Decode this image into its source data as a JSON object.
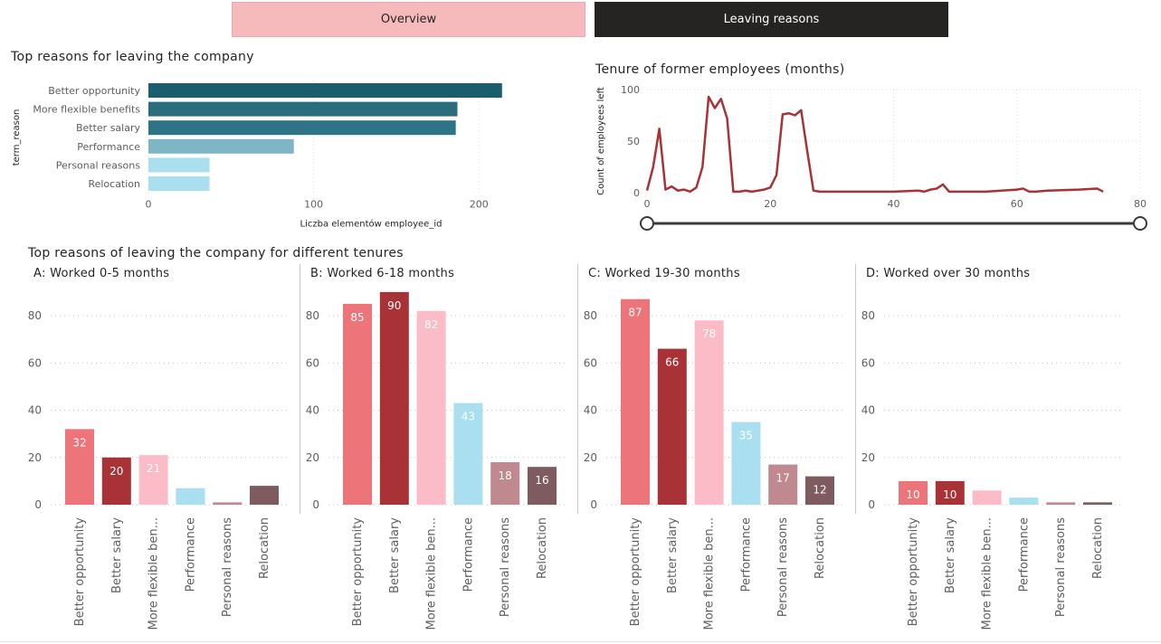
{
  "tabs": [
    {
      "label": "Overview",
      "active": false
    },
    {
      "label": "Leaving reasons",
      "active": true
    }
  ],
  "top_reasons": {
    "title": "Top reasons for leaving the company",
    "chart_data": {
      "type": "bar",
      "orientation": "horizontal",
      "categories": [
        "Better opportunity",
        "More flexible benefits",
        "Better salary",
        "Performance",
        "Personal reasons",
        "Relocation"
      ],
      "values": [
        214,
        187,
        186,
        88,
        37,
        37
      ],
      "colors": [
        "#1a5e6e",
        "#2a6e7d",
        "#2d7487",
        "#7fb6c6",
        "#a9dfee",
        "#a9dfee"
      ],
      "xlabel": "Liczba elementów employee_id",
      "ylabel": "term_reason",
      "xlim": [
        0,
        230
      ],
      "xticks": [
        0,
        100,
        200
      ],
      "grid": true
    }
  },
  "tenure_chart": {
    "title": "Tenure of former employees (months)",
    "chart_data": {
      "type": "line",
      "ylabel": "Count of employees left",
      "xlabel": "",
      "xlim": [
        0,
        80
      ],
      "ylim": [
        0,
        100
      ],
      "xticks": [
        0,
        20,
        40,
        60,
        80
      ],
      "yticks": [
        0,
        50,
        100
      ],
      "color": "#a83236",
      "x": [
        0,
        1,
        2,
        3,
        4,
        5,
        6,
        7,
        8,
        9,
        10,
        11,
        12,
        13,
        14,
        15,
        16,
        17,
        18,
        19,
        20,
        21,
        22,
        23,
        24,
        25,
        26,
        27,
        28,
        30,
        35,
        40,
        44,
        45,
        46,
        47,
        48,
        49,
        50,
        55,
        60,
        61,
        62,
        63,
        65,
        70,
        73,
        74
      ],
      "y": [
        2,
        25,
        62,
        3,
        6,
        2,
        3,
        1,
        5,
        25,
        93,
        82,
        91,
        72,
        1,
        1,
        2,
        1,
        2,
        3,
        5,
        17,
        76,
        77,
        75,
        80,
        40,
        2,
        1,
        1,
        1,
        1,
        2,
        1,
        3,
        4,
        8,
        1,
        1,
        1,
        3,
        4,
        1,
        1,
        2,
        3,
        4,
        1
      ],
      "grid": true
    },
    "slider": {
      "min": 0,
      "max": 80,
      "value_from": 0,
      "value_to": 80
    }
  },
  "tenure_reasons": {
    "title": "Top reasons of leaving the company for different tenures",
    "panels": [
      {
        "subtitle": "A: Worked 0-5 months",
        "chart_data": {
          "type": "bar",
          "categories": [
            "Better opportunity",
            "Better salary",
            "More flexible ben...",
            "Performance",
            "Personal reasons",
            "Relocation"
          ],
          "values": [
            32,
            20,
            21,
            7,
            1,
            8
          ],
          "data_labels": [
            "32",
            "20",
            "21",
            "",
            "",
            ""
          ],
          "ylim": [
            0,
            90
          ],
          "yticks": [
            0,
            20,
            40,
            60,
            80
          ]
        }
      },
      {
        "subtitle": "B: Worked 6-18 months",
        "chart_data": {
          "type": "bar",
          "categories": [
            "Better opportunity",
            "Better salary",
            "More flexible ben...",
            "Performance",
            "Personal reasons",
            "Relocation"
          ],
          "values": [
            85,
            90,
            82,
            43,
            18,
            16
          ],
          "data_labels": [
            "85",
            "90",
            "82",
            "43",
            "18",
            "16"
          ],
          "ylim": [
            0,
            90
          ],
          "yticks": [
            0,
            20,
            40,
            60,
            80
          ]
        }
      },
      {
        "subtitle": "C: Worked 19-30 months",
        "chart_data": {
          "type": "bar",
          "categories": [
            "Better opportunity",
            "Better salary",
            "More flexible ben...",
            "Performance",
            "Personal reasons",
            "Relocation"
          ],
          "values": [
            87,
            66,
            78,
            35,
            17,
            12
          ],
          "data_labels": [
            "87",
            "66",
            "78",
            "35",
            "17",
            "12"
          ],
          "ylim": [
            0,
            90
          ],
          "yticks": [
            0,
            20,
            40,
            60,
            80
          ]
        }
      },
      {
        "subtitle": "D: Worked over 30 months",
        "chart_data": {
          "type": "bar",
          "categories": [
            "Better opportunity",
            "Better salary",
            "More flexible ben...",
            "Performance",
            "Personal reasons",
            "Relocation"
          ],
          "values": [
            10,
            10,
            6,
            3,
            1,
            1
          ],
          "data_labels": [
            "10",
            "10",
            "",
            "",
            "",
            ""
          ],
          "ylim": [
            0,
            90
          ],
          "yticks": [
            0,
            20,
            40,
            60,
            80
          ]
        }
      }
    ],
    "bar_colors": [
      "#ed7479",
      "#a83236",
      "#fbbcc8",
      "#a9dfee",
      "#c0888f",
      "#7d5b5f"
    ],
    "label_colors": [
      "#ffffff",
      "#ffffff",
      "#ffffff",
      "#ffffff",
      "#ffffff",
      "#ffffff"
    ]
  }
}
